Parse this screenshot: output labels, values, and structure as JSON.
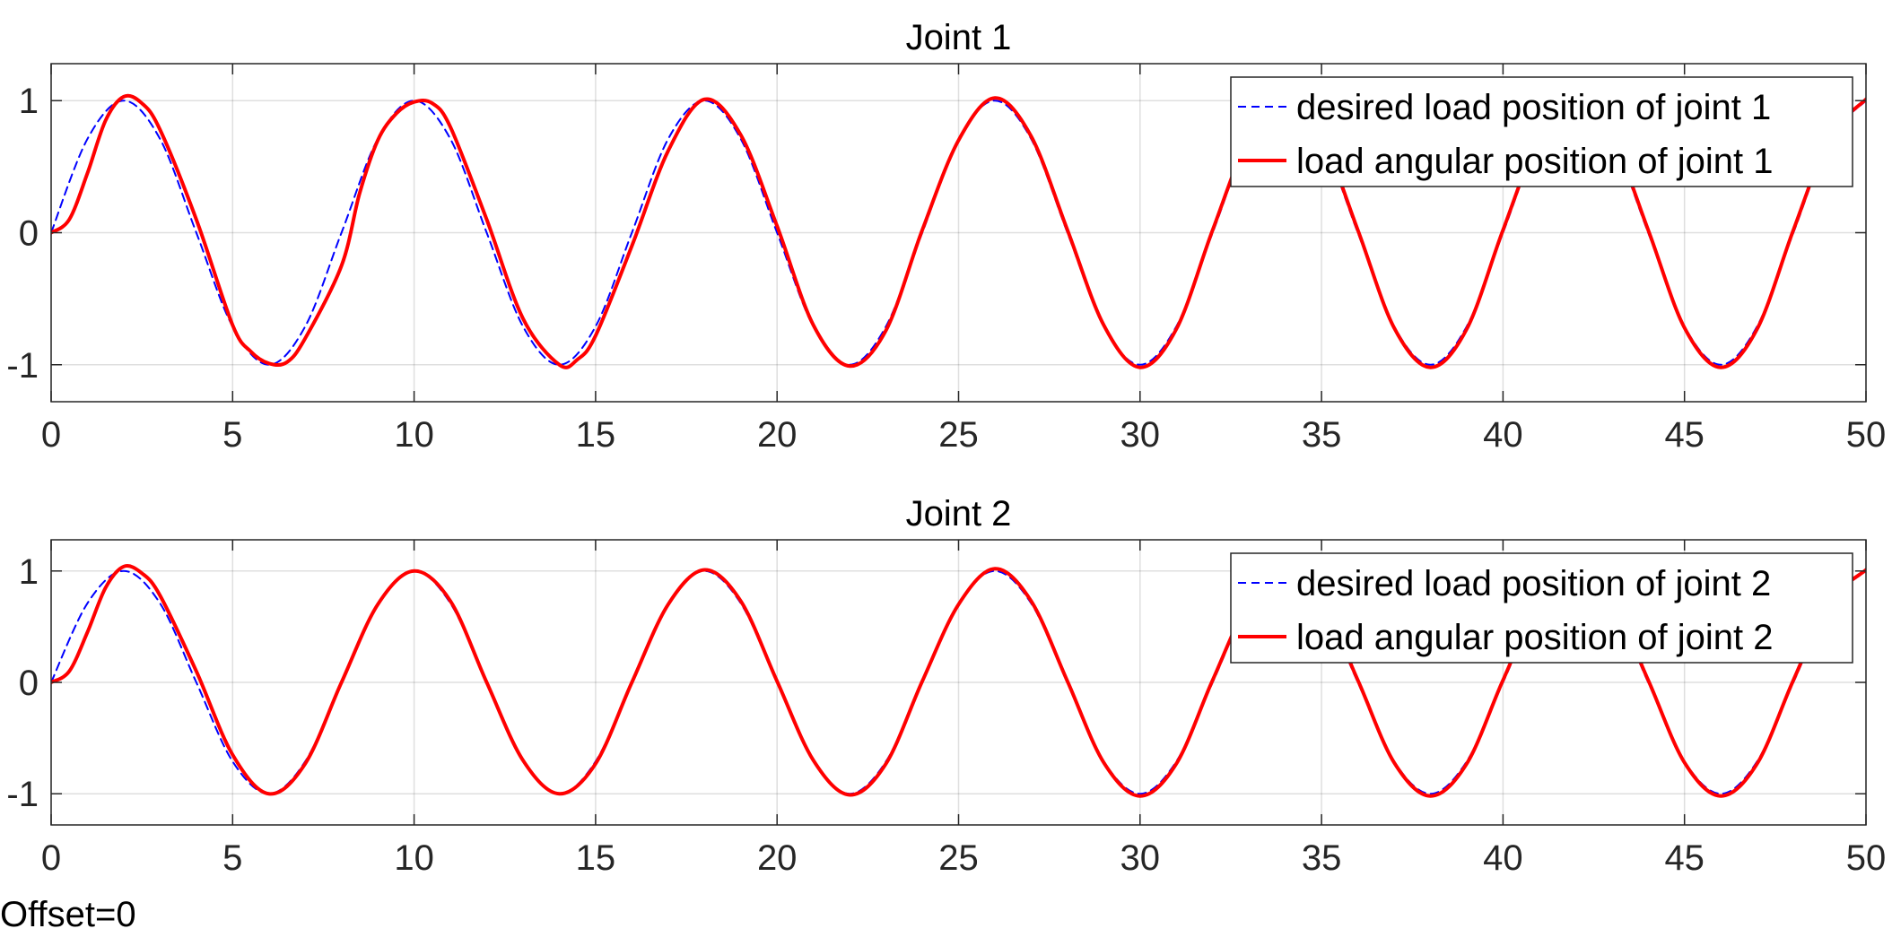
{
  "chart_data": [
    {
      "type": "line",
      "title": "Joint 1",
      "xlabel": "",
      "ylabel": "",
      "xlim": [
        0,
        50
      ],
      "ylim": [
        -1.28,
        1.28
      ],
      "xticks": [
        0,
        5,
        10,
        15,
        20,
        25,
        30,
        35,
        40,
        45,
        50
      ],
      "xtick_labels": [
        "0",
        "5",
        "10",
        "15",
        "20",
        "25",
        "30",
        "35",
        "40",
        "45",
        "50"
      ],
      "yticks": [
        -1,
        0,
        1
      ],
      "ytick_labels": [
        "-1",
        "0",
        "1"
      ],
      "grid": true,
      "legend_position": "top-right",
      "series": [
        {
          "name": "desired load position of joint 1",
          "color": "#0000ff",
          "style": "dashed",
          "x": [
            0,
            1,
            2,
            3,
            4,
            5,
            6,
            7,
            8,
            9,
            10,
            11,
            12,
            13,
            14,
            15,
            16,
            17,
            18,
            19,
            20,
            21,
            22,
            23,
            24,
            25,
            26,
            27,
            28,
            29,
            30,
            31,
            32,
            33,
            34,
            35,
            36,
            37,
            38,
            39,
            40,
            41,
            42,
            43,
            44,
            45,
            46,
            47,
            48,
            49,
            50
          ],
          "y": [
            0,
            0.71,
            1.0,
            0.71,
            0,
            -0.71,
            -1.0,
            -0.71,
            0,
            0.71,
            1.0,
            0.71,
            0,
            -0.71,
            -1.0,
            -0.71,
            0,
            0.71,
            1.0,
            0.71,
            0,
            -0.71,
            -1.0,
            -0.71,
            0,
            0.71,
            1.0,
            0.71,
            0,
            -0.71,
            -1.0,
            -0.71,
            0,
            0.71,
            1.0,
            0.71,
            0,
            -0.71,
            -1.0,
            -0.71,
            0,
            0.71,
            1.0,
            0.71,
            0,
            -0.71,
            -1.0,
            -0.71,
            0,
            0.71,
            1.0
          ]
        },
        {
          "name": "load angular position of joint 1",
          "color": "#ff0000",
          "style": "solid",
          "x": [
            0,
            0.5,
            1,
            1.5,
            2,
            2.5,
            3,
            4,
            5,
            5.5,
            6,
            6.5,
            7,
            8,
            8.5,
            9,
            9.5,
            10,
            10.5,
            11,
            12,
            13,
            14,
            14.5,
            15,
            16,
            17,
            18,
            19,
            20,
            21,
            22,
            23,
            24,
            25,
            26,
            27,
            28,
            29,
            30,
            31,
            32,
            33,
            34,
            35,
            36,
            37,
            38,
            39,
            40,
            41,
            42,
            43,
            44,
            45,
            46,
            47,
            48,
            49,
            50
          ],
          "y": [
            0,
            0.1,
            0.45,
            0.85,
            1.03,
            0.98,
            0.78,
            0.1,
            -0.7,
            -0.9,
            -0.99,
            -0.98,
            -0.8,
            -0.25,
            0.3,
            0.7,
            0.9,
            0.99,
            0.98,
            0.8,
            0.1,
            -0.65,
            -1.0,
            -0.96,
            -0.78,
            -0.1,
            0.62,
            1.01,
            0.74,
            0.05,
            -0.7,
            -1.01,
            -0.74,
            0.02,
            0.7,
            1.02,
            0.73,
            0.02,
            -0.7,
            -1.02,
            -0.73,
            0.02,
            0.72,
            1.02,
            0.73,
            0.02,
            -0.72,
            -1.02,
            -0.73,
            0.02,
            0.72,
            1.02,
            0.73,
            0.02,
            -0.72,
            -1.02,
            -0.73,
            0.02,
            0.72,
            1.01
          ]
        }
      ]
    },
    {
      "type": "line",
      "title": "Joint 2",
      "xlabel": "",
      "ylabel": "",
      "xlim": [
        0,
        50
      ],
      "ylim": [
        -1.28,
        1.28
      ],
      "xticks": [
        0,
        5,
        10,
        15,
        20,
        25,
        30,
        35,
        40,
        45,
        50
      ],
      "xtick_labels": [
        "0",
        "5",
        "10",
        "15",
        "20",
        "25",
        "30",
        "35",
        "40",
        "45",
        "50"
      ],
      "yticks": [
        -1,
        0,
        1
      ],
      "ytick_labels": [
        "-1",
        "0",
        "1"
      ],
      "grid": true,
      "legend_position": "top-right",
      "series": [
        {
          "name": "desired load position of joint 2",
          "color": "#0000ff",
          "style": "dashed",
          "x": [
            0,
            1,
            2,
            3,
            4,
            5,
            6,
            7,
            8,
            9,
            10,
            11,
            12,
            13,
            14,
            15,
            16,
            17,
            18,
            19,
            20,
            21,
            22,
            23,
            24,
            25,
            26,
            27,
            28,
            29,
            30,
            31,
            32,
            33,
            34,
            35,
            36,
            37,
            38,
            39,
            40,
            41,
            42,
            43,
            44,
            45,
            46,
            47,
            48,
            49,
            50
          ],
          "y": [
            0,
            0.71,
            1.0,
            0.71,
            0,
            -0.71,
            -1.0,
            -0.71,
            0,
            0.71,
            1.0,
            0.71,
            0,
            -0.71,
            -1.0,
            -0.71,
            0,
            0.71,
            1.0,
            0.71,
            0,
            -0.71,
            -1.0,
            -0.71,
            0,
            0.71,
            1.0,
            0.71,
            0,
            -0.71,
            -1.0,
            -0.71,
            0,
            0.71,
            1.0,
            0.71,
            0,
            -0.71,
            -1.0,
            -0.71,
            0,
            0.71,
            1.0,
            0.71,
            0,
            -0.71,
            -1.0,
            -0.71,
            0,
            0.71,
            1.0
          ]
        },
        {
          "name": "load angular position of joint 2",
          "color": "#ff0000",
          "style": "solid",
          "x": [
            0,
            0.5,
            1,
            1.5,
            2,
            2.5,
            3,
            4,
            5,
            6,
            7,
            8,
            9,
            10,
            11,
            12,
            13,
            14,
            15,
            16,
            17,
            18,
            19,
            20,
            21,
            22,
            23,
            24,
            25,
            26,
            27,
            28,
            29,
            30,
            31,
            32,
            33,
            34,
            35,
            36,
            37,
            38,
            39,
            40,
            41,
            42,
            43,
            44,
            45,
            46,
            47,
            48,
            49,
            50
          ],
          "y": [
            0,
            0.1,
            0.45,
            0.85,
            1.04,
            0.98,
            0.78,
            0.1,
            -0.65,
            -1.0,
            -0.73,
            0.0,
            0.7,
            1.0,
            0.73,
            0.0,
            -0.7,
            -1.0,
            -0.73,
            0.0,
            0.7,
            1.01,
            0.73,
            0.01,
            -0.7,
            -1.01,
            -0.73,
            0.01,
            0.7,
            1.02,
            0.73,
            0.01,
            -0.72,
            -1.02,
            -0.73,
            0.02,
            0.72,
            1.02,
            0.73,
            0.02,
            -0.72,
            -1.02,
            -0.73,
            0.02,
            0.72,
            1.02,
            0.73,
            0.02,
            -0.72,
            -1.02,
            -0.73,
            0.02,
            0.72,
            1.01
          ]
        }
      ]
    }
  ],
  "footer": {
    "offset_label": "Offset=0"
  }
}
